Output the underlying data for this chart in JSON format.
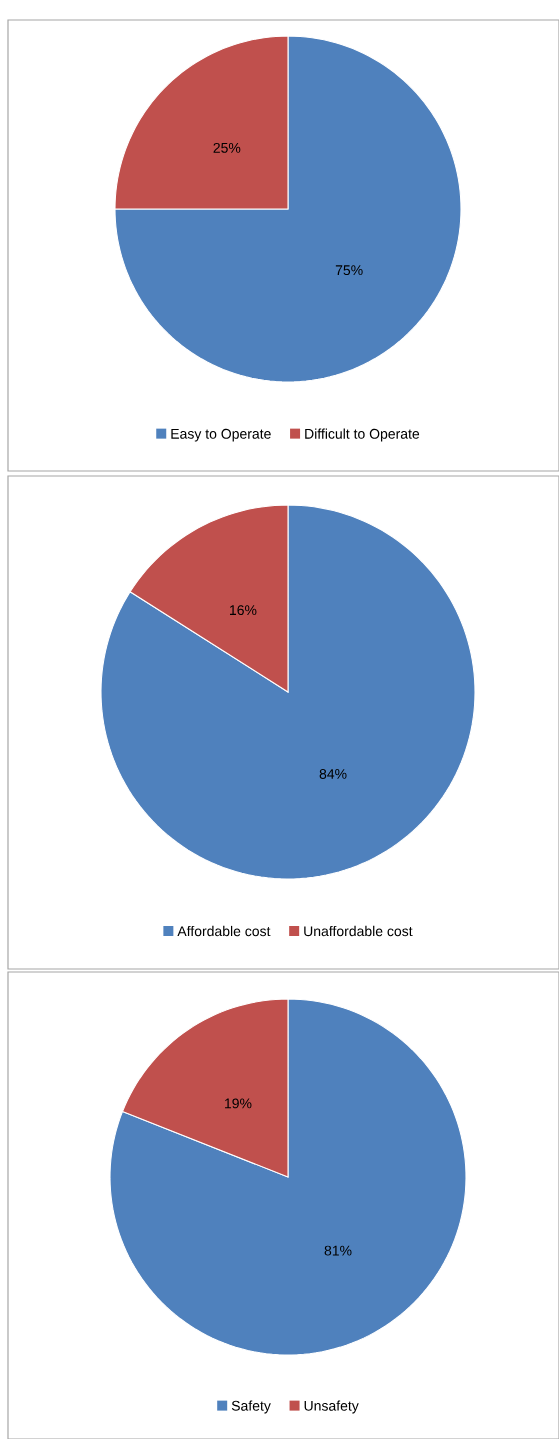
{
  "chart_data": [
    {
      "type": "pie",
      "categories": [
        "Easy to Operate",
        "Difficult to Operate"
      ],
      "values": [
        75,
        25
      ],
      "colors": [
        "#4f81bd",
        "#c0504d"
      ],
      "value_labels": [
        "75%",
        "25%"
      ],
      "legend": "bottom"
    },
    {
      "type": "pie",
      "categories": [
        "Affordable cost",
        "Unaffordable cost"
      ],
      "values": [
        84,
        16
      ],
      "colors": [
        "#4f81bd",
        "#c0504d"
      ],
      "value_labels": [
        "84%",
        "16%"
      ],
      "legend": "bottom"
    },
    {
      "type": "pie",
      "categories": [
        "Safety",
        "Unsafety"
      ],
      "values": [
        81,
        19
      ],
      "colors": [
        "#4f81bd",
        "#c0504d"
      ],
      "value_labels": [
        "81%",
        "19%"
      ],
      "legend": "bottom"
    }
  ]
}
